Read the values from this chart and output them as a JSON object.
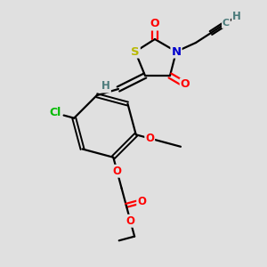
{
  "background_color": "#e0e0e0",
  "bond_color": "#000000",
  "atom_colors": {
    "O": "#ff0000",
    "S": "#b8b800",
    "N": "#0000cc",
    "Cl": "#00bb00",
    "C": "#4a7a7a",
    "H": "#4a7a7a"
  },
  "figsize": [
    3.0,
    3.0
  ],
  "dpi": 100
}
